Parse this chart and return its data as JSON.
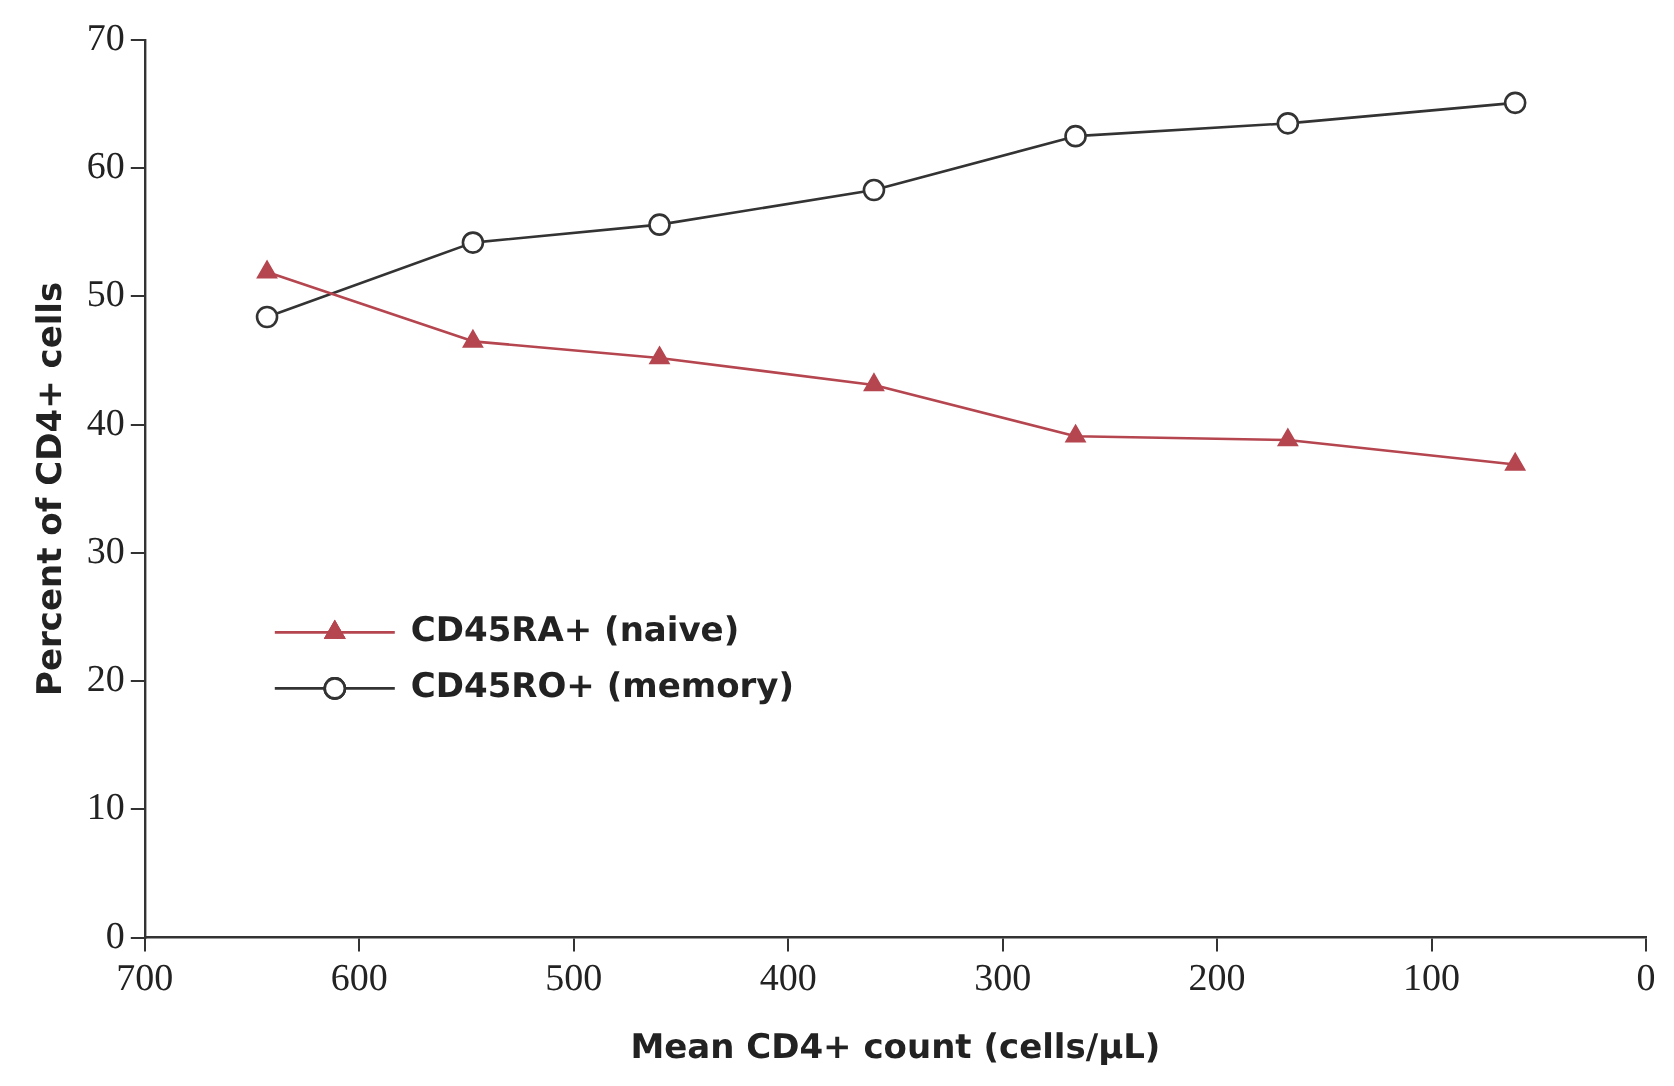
{
  "chart_data": {
    "type": "line",
    "xlabel": "Mean CD4+ count (cells/µL)",
    "ylabel": "Percent of CD4+ cells",
    "x": [
      643,
      547,
      460,
      360,
      266,
      167,
      61
    ],
    "series": [
      {
        "name": "CD45RA+ (naive)",
        "color": "#b5454f",
        "marker": "triangle",
        "values": [
          51.9,
          46.5,
          45.2,
          43.1,
          39.1,
          38.8,
          36.9
        ]
      },
      {
        "name": "CD45RO+ (memory)",
        "color": "#333333",
        "marker": "circle",
        "values": [
          48.4,
          54.2,
          55.6,
          58.3,
          62.5,
          63.5,
          65.1
        ]
      }
    ],
    "xlim": [
      700,
      0
    ],
    "xticks": [
      700,
      600,
      500,
      400,
      300,
      200,
      100,
      0
    ],
    "ylim": [
      0,
      70
    ],
    "yticks": [
      0,
      10,
      20,
      30,
      40,
      50,
      60,
      70
    ],
    "grid": false,
    "legend": "left",
    "line_style": "solid"
  }
}
